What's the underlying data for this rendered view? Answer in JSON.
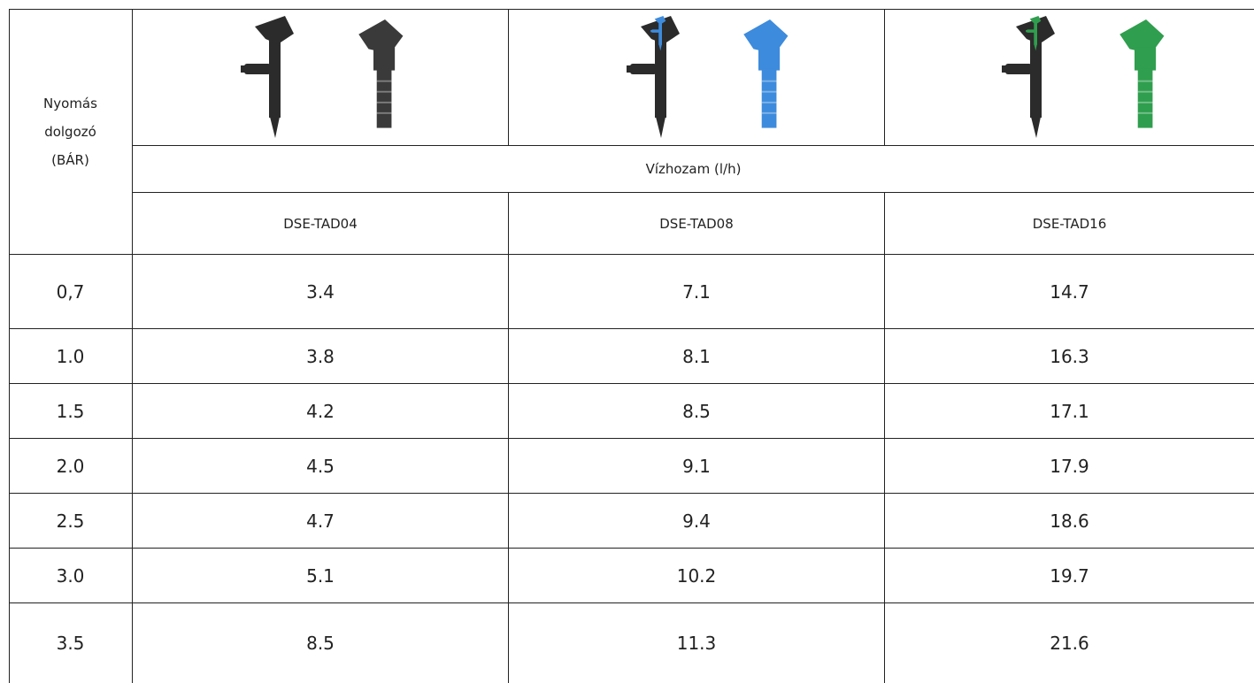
{
  "table": {
    "corner": "Nyomás dolgozó (BÁR)",
    "flow_header": "Vízhozam (l/h)",
    "models": [
      "DSE-TAD04",
      "DSE-TAD08",
      "DSE-TAD16"
    ],
    "rows": [
      [
        "0,7",
        "3.4",
        "7.1",
        "14.7"
      ],
      [
        "1.0",
        "3.8",
        "8.1",
        "16.3"
      ],
      [
        "1.5",
        "4.2",
        "8.5",
        "17.1"
      ],
      [
        "2.0",
        "4.5",
        "9.1",
        "17.9"
      ],
      [
        "2.5",
        "4.7",
        "9.4",
        "18.6"
      ],
      [
        "3.0",
        "5.1",
        "10.2",
        "19.7"
      ],
      [
        "3.5",
        "8.5",
        "11.3",
        "21.6"
      ]
    ]
  }
}
